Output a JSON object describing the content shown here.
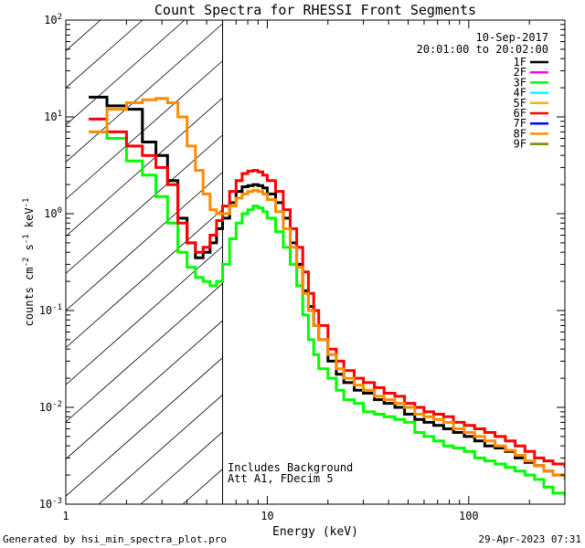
{
  "chart_data": {
    "type": "line",
    "title": "Count Spectra for RHESSI Front Segments",
    "xlabel": "Energy (keV)",
    "ylabel": {
      "base": "counts cm",
      "exp1": "-2",
      "mid1": " s",
      "exp2": "-1",
      "mid2": " keV",
      "exp3": "-1"
    },
    "x_scale": "log",
    "y_scale": "log",
    "xlim": [
      1,
      300
    ],
    "ylim": [
      0.001,
      100
    ],
    "x_ticks": [
      {
        "value": 1,
        "label": "1"
      },
      {
        "value": 10,
        "label": "10"
      },
      {
        "value": 100,
        "label": "100"
      }
    ],
    "y_ticks": [
      {
        "value": 0.001,
        "base": "10",
        "exp": "-3"
      },
      {
        "value": 0.01,
        "base": "10",
        "exp": "-2"
      },
      {
        "value": 0.1,
        "base": "10",
        "exp": "-1"
      },
      {
        "value": 1,
        "base": "10",
        "exp": "0"
      },
      {
        "value": 10,
        "base": "10",
        "exp": "1"
      },
      {
        "value": 100,
        "base": "10",
        "exp": "2"
      }
    ],
    "date": "10-Sep-2017",
    "time_range": "20:01:00 to 20:02:00",
    "shaded_region_keV": [
      1,
      6
    ],
    "annotations": [
      "Includes Background",
      "Att A1, FDecim  5"
    ],
    "legend_position": "top-right",
    "legend": [
      {
        "name": "1F",
        "color": "#000000"
      },
      {
        "name": "2F",
        "color": "#ff00ff"
      },
      {
        "name": "3F",
        "color": "#00ff00"
      },
      {
        "name": "4F",
        "color": "#00ffff"
      },
      {
        "name": "5F",
        "color": "#ffb000"
      },
      {
        "name": "6F",
        "color": "#ff0000"
      },
      {
        "name": "7F",
        "color": "#0000ff"
      },
      {
        "name": "8F",
        "color": "#ff8c00"
      },
      {
        "name": "9F",
        "color": "#808000"
      }
    ],
    "series": [
      {
        "name": "1F",
        "color": "#000000",
        "points": [
          [
            1.3,
            16
          ],
          [
            1.6,
            13
          ],
          [
            2.0,
            12
          ],
          [
            2.4,
            5.5
          ],
          [
            2.8,
            4
          ],
          [
            3.2,
            2.2
          ],
          [
            3.6,
            0.9
          ],
          [
            4.0,
            0.5
          ],
          [
            4.4,
            0.35
          ],
          [
            4.8,
            0.4
          ],
          [
            5.2,
            0.5
          ],
          [
            5.6,
            0.7
          ],
          [
            6.0,
            0.9
          ],
          [
            6.5,
            1.3
          ],
          [
            7.0,
            1.7
          ],
          [
            7.5,
            1.9
          ],
          [
            8.0,
            1.95
          ],
          [
            8.5,
            2.0
          ],
          [
            9.0,
            1.95
          ],
          [
            9.5,
            1.85
          ],
          [
            10,
            1.6
          ],
          [
            11,
            1.3
          ],
          [
            12,
            0.9
          ],
          [
            13,
            0.5
          ],
          [
            14,
            0.3
          ],
          [
            15,
            0.16
          ],
          [
            16,
            0.11
          ],
          [
            17,
            0.07
          ],
          [
            18,
            0.05
          ],
          [
            20,
            0.03
          ],
          [
            22,
            0.022
          ],
          [
            24,
            0.018
          ],
          [
            27,
            0.015
          ],
          [
            30,
            0.014
          ],
          [
            34,
            0.012
          ],
          [
            38,
            0.011
          ],
          [
            43,
            0.01
          ],
          [
            48,
            0.0085
          ],
          [
            54,
            0.0075
          ],
          [
            60,
            0.007
          ],
          [
            67,
            0.0065
          ],
          [
            75,
            0.006
          ],
          [
            84,
            0.0055
          ],
          [
            95,
            0.005
          ],
          [
            107,
            0.0045
          ],
          [
            120,
            0.004
          ],
          [
            135,
            0.0038
          ],
          [
            152,
            0.0035
          ],
          [
            170,
            0.003
          ],
          [
            190,
            0.0027
          ],
          [
            212,
            0.0025
          ],
          [
            236,
            0.0022
          ],
          [
            262,
            0.002
          ],
          [
            300,
            0.0018
          ]
        ]
      },
      {
        "name": "3F",
        "color": "#00ff00",
        "points": [
          [
            1.3,
            7
          ],
          [
            1.6,
            6
          ],
          [
            2.0,
            3.5
          ],
          [
            2.4,
            2.5
          ],
          [
            2.8,
            1.5
          ],
          [
            3.2,
            0.8
          ],
          [
            3.6,
            0.4
          ],
          [
            4.0,
            0.28
          ],
          [
            4.4,
            0.22
          ],
          [
            4.8,
            0.2
          ],
          [
            5.2,
            0.18
          ],
          [
            5.6,
            0.2
          ],
          [
            6.0,
            0.3
          ],
          [
            6.5,
            0.55
          ],
          [
            7.0,
            0.8
          ],
          [
            7.5,
            1.0
          ],
          [
            8.0,
            1.1
          ],
          [
            8.5,
            1.2
          ],
          [
            9.0,
            1.15
          ],
          [
            9.5,
            1.05
          ],
          [
            10,
            0.9
          ],
          [
            11,
            0.65
          ],
          [
            12,
            0.45
          ],
          [
            13,
            0.3
          ],
          [
            14,
            0.18
          ],
          [
            15,
            0.09
          ],
          [
            16,
            0.05
          ],
          [
            17,
            0.035
          ],
          [
            18,
            0.025
          ],
          [
            20,
            0.02
          ],
          [
            22,
            0.015
          ],
          [
            24,
            0.012
          ],
          [
            27,
            0.011
          ],
          [
            30,
            0.009
          ],
          [
            34,
            0.0085
          ],
          [
            38,
            0.008
          ],
          [
            43,
            0.0075
          ],
          [
            48,
            0.007
          ],
          [
            54,
            0.0055
          ],
          [
            60,
            0.005
          ],
          [
            67,
            0.0045
          ],
          [
            75,
            0.004
          ],
          [
            84,
            0.0038
          ],
          [
            95,
            0.0035
          ],
          [
            107,
            0.003
          ],
          [
            120,
            0.0028
          ],
          [
            135,
            0.0026
          ],
          [
            152,
            0.0024
          ],
          [
            170,
            0.0022
          ],
          [
            190,
            0.002
          ],
          [
            212,
            0.0018
          ],
          [
            236,
            0.0015
          ],
          [
            262,
            0.0013
          ],
          [
            300,
            0.0012
          ]
        ]
      },
      {
        "name": "6F",
        "color": "#ff0000",
        "points": [
          [
            1.3,
            9.5
          ],
          [
            1.6,
            7
          ],
          [
            2.0,
            5
          ],
          [
            2.4,
            4
          ],
          [
            2.8,
            3
          ],
          [
            3.2,
            2
          ],
          [
            3.6,
            0.8
          ],
          [
            4.0,
            0.5
          ],
          [
            4.4,
            0.4
          ],
          [
            4.8,
            0.45
          ],
          [
            5.2,
            0.6
          ],
          [
            5.6,
            0.85
          ],
          [
            6.0,
            1.2
          ],
          [
            6.5,
            1.7
          ],
          [
            7.0,
            2.2
          ],
          [
            7.5,
            2.6
          ],
          [
            8.0,
            2.75
          ],
          [
            8.5,
            2.8
          ],
          [
            9.0,
            2.7
          ],
          [
            9.5,
            2.5
          ],
          [
            10,
            2.2
          ],
          [
            11,
            1.7
          ],
          [
            12,
            1.1
          ],
          [
            13,
            0.7
          ],
          [
            14,
            0.45
          ],
          [
            15,
            0.25
          ],
          [
            16,
            0.15
          ],
          [
            17,
            0.1
          ],
          [
            18,
            0.07
          ],
          [
            20,
            0.04
          ],
          [
            22,
            0.03
          ],
          [
            24,
            0.024
          ],
          [
            27,
            0.02
          ],
          [
            30,
            0.018
          ],
          [
            34,
            0.016
          ],
          [
            38,
            0.014
          ],
          [
            43,
            0.013
          ],
          [
            48,
            0.011
          ],
          [
            54,
            0.01
          ],
          [
            60,
            0.009
          ],
          [
            67,
            0.0085
          ],
          [
            75,
            0.008
          ],
          [
            84,
            0.007
          ],
          [
            95,
            0.0065
          ],
          [
            107,
            0.006
          ],
          [
            120,
            0.0055
          ],
          [
            135,
            0.005
          ],
          [
            152,
            0.0045
          ],
          [
            170,
            0.004
          ],
          [
            190,
            0.0035
          ],
          [
            212,
            0.003
          ],
          [
            236,
            0.0028
          ],
          [
            262,
            0.0026
          ],
          [
            300,
            0.0024
          ]
        ]
      },
      {
        "name": "8F",
        "color": "#ff8c00",
        "points": [
          [
            1.3,
            7
          ],
          [
            1.6,
            12
          ],
          [
            2.0,
            14
          ],
          [
            2.4,
            15
          ],
          [
            2.8,
            15.5
          ],
          [
            3.2,
            14
          ],
          [
            3.6,
            10
          ],
          [
            4.0,
            5
          ],
          [
            4.4,
            2.8
          ],
          [
            4.8,
            1.6
          ],
          [
            5.2,
            1.1
          ],
          [
            5.6,
            1.0
          ],
          [
            6.0,
            1.0
          ],
          [
            6.5,
            1.2
          ],
          [
            7.0,
            1.45
          ],
          [
            7.5,
            1.6
          ],
          [
            8.0,
            1.7
          ],
          [
            8.5,
            1.75
          ],
          [
            9.0,
            1.7
          ],
          [
            9.5,
            1.6
          ],
          [
            10,
            1.4
          ],
          [
            11,
            1.05
          ],
          [
            12,
            0.7
          ],
          [
            13,
            0.45
          ],
          [
            14,
            0.28
          ],
          [
            15,
            0.15
          ],
          [
            16,
            0.1
          ],
          [
            17,
            0.07
          ],
          [
            18,
            0.05
          ],
          [
            20,
            0.035
          ],
          [
            22,
            0.025
          ],
          [
            24,
            0.02
          ],
          [
            27,
            0.017
          ],
          [
            30,
            0.015
          ],
          [
            34,
            0.013
          ],
          [
            38,
            0.012
          ],
          [
            43,
            0.011
          ],
          [
            48,
            0.01
          ],
          [
            54,
            0.0085
          ],
          [
            60,
            0.008
          ],
          [
            67,
            0.0075
          ],
          [
            75,
            0.007
          ],
          [
            84,
            0.006
          ],
          [
            95,
            0.0055
          ],
          [
            107,
            0.005
          ],
          [
            120,
            0.0045
          ],
          [
            135,
            0.004
          ],
          [
            152,
            0.0036
          ],
          [
            170,
            0.0032
          ],
          [
            190,
            0.0028
          ],
          [
            212,
            0.0025
          ],
          [
            236,
            0.0022
          ],
          [
            262,
            0.002
          ],
          [
            300,
            0.0018
          ]
        ]
      }
    ]
  },
  "footer": {
    "generated_by": "Generated by hsi_min_spectra_plot.pro",
    "timestamp": "29-Apr-2023 07:31"
  }
}
